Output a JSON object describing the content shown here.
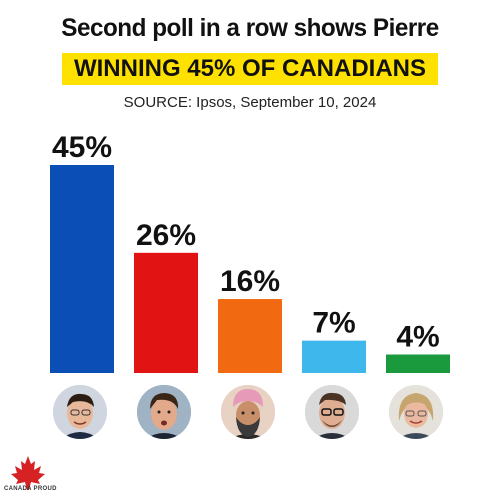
{
  "header": {
    "title": "Second poll in a row shows Pierre",
    "subtitle": "WINNING 45% OF CANADIANS",
    "source": "SOURCE: Ipsos, September 10, 2024"
  },
  "chart_data": {
    "type": "bar",
    "categories": [
      "",
      "",
      "",
      "",
      ""
    ],
    "values": [
      45,
      26,
      16,
      7,
      4
    ],
    "value_labels": [
      "45%",
      "26%",
      "16%",
      "7%",
      "4%"
    ],
    "colors": [
      "#0b4fb6",
      "#e21313",
      "#f16a12",
      "#3eb8ec",
      "#1a9a3c"
    ],
    "ylim": [
      0,
      45
    ],
    "grid": false,
    "legend": "none"
  },
  "footer": {
    "logo_text": "CANADA PROUD",
    "logo_icon": "maple-leaf-icon"
  }
}
